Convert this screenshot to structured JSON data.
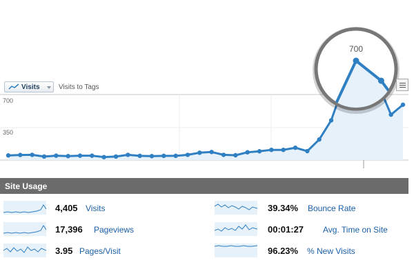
{
  "header": {
    "metric_label": "Visits",
    "compare_label": "Visits to Tags"
  },
  "chart_data": {
    "type": "area",
    "y_ticks": [
      "700",
      "350"
    ],
    "ylim": [
      0,
      700
    ],
    "values": [
      33,
      36,
      37,
      25,
      31,
      28,
      31,
      31,
      21,
      25,
      37,
      30,
      28,
      30,
      30,
      37,
      52,
      57,
      37,
      34,
      55,
      62,
      72,
      72,
      87,
      63,
      145,
      280,
      520,
      700,
      633,
      520,
      320,
      390
    ],
    "callout_label": "700",
    "line_color": "#2f7fc3",
    "fill_color": "#e6f1fa"
  },
  "site_usage": {
    "title": "Site Usage",
    "metrics": [
      {
        "value": "4,405",
        "label": "Visits"
      },
      {
        "value": "17,396",
        "label": "Pageviews"
      },
      {
        "value": "3.95",
        "label": "Pages/Visit"
      },
      {
        "value": "39.34%",
        "label": "Bounce Rate"
      },
      {
        "value": "00:01:27",
        "label": "Avg. Time on Site"
      },
      {
        "value": "96.23%",
        "label": "% New Visits"
      }
    ]
  }
}
